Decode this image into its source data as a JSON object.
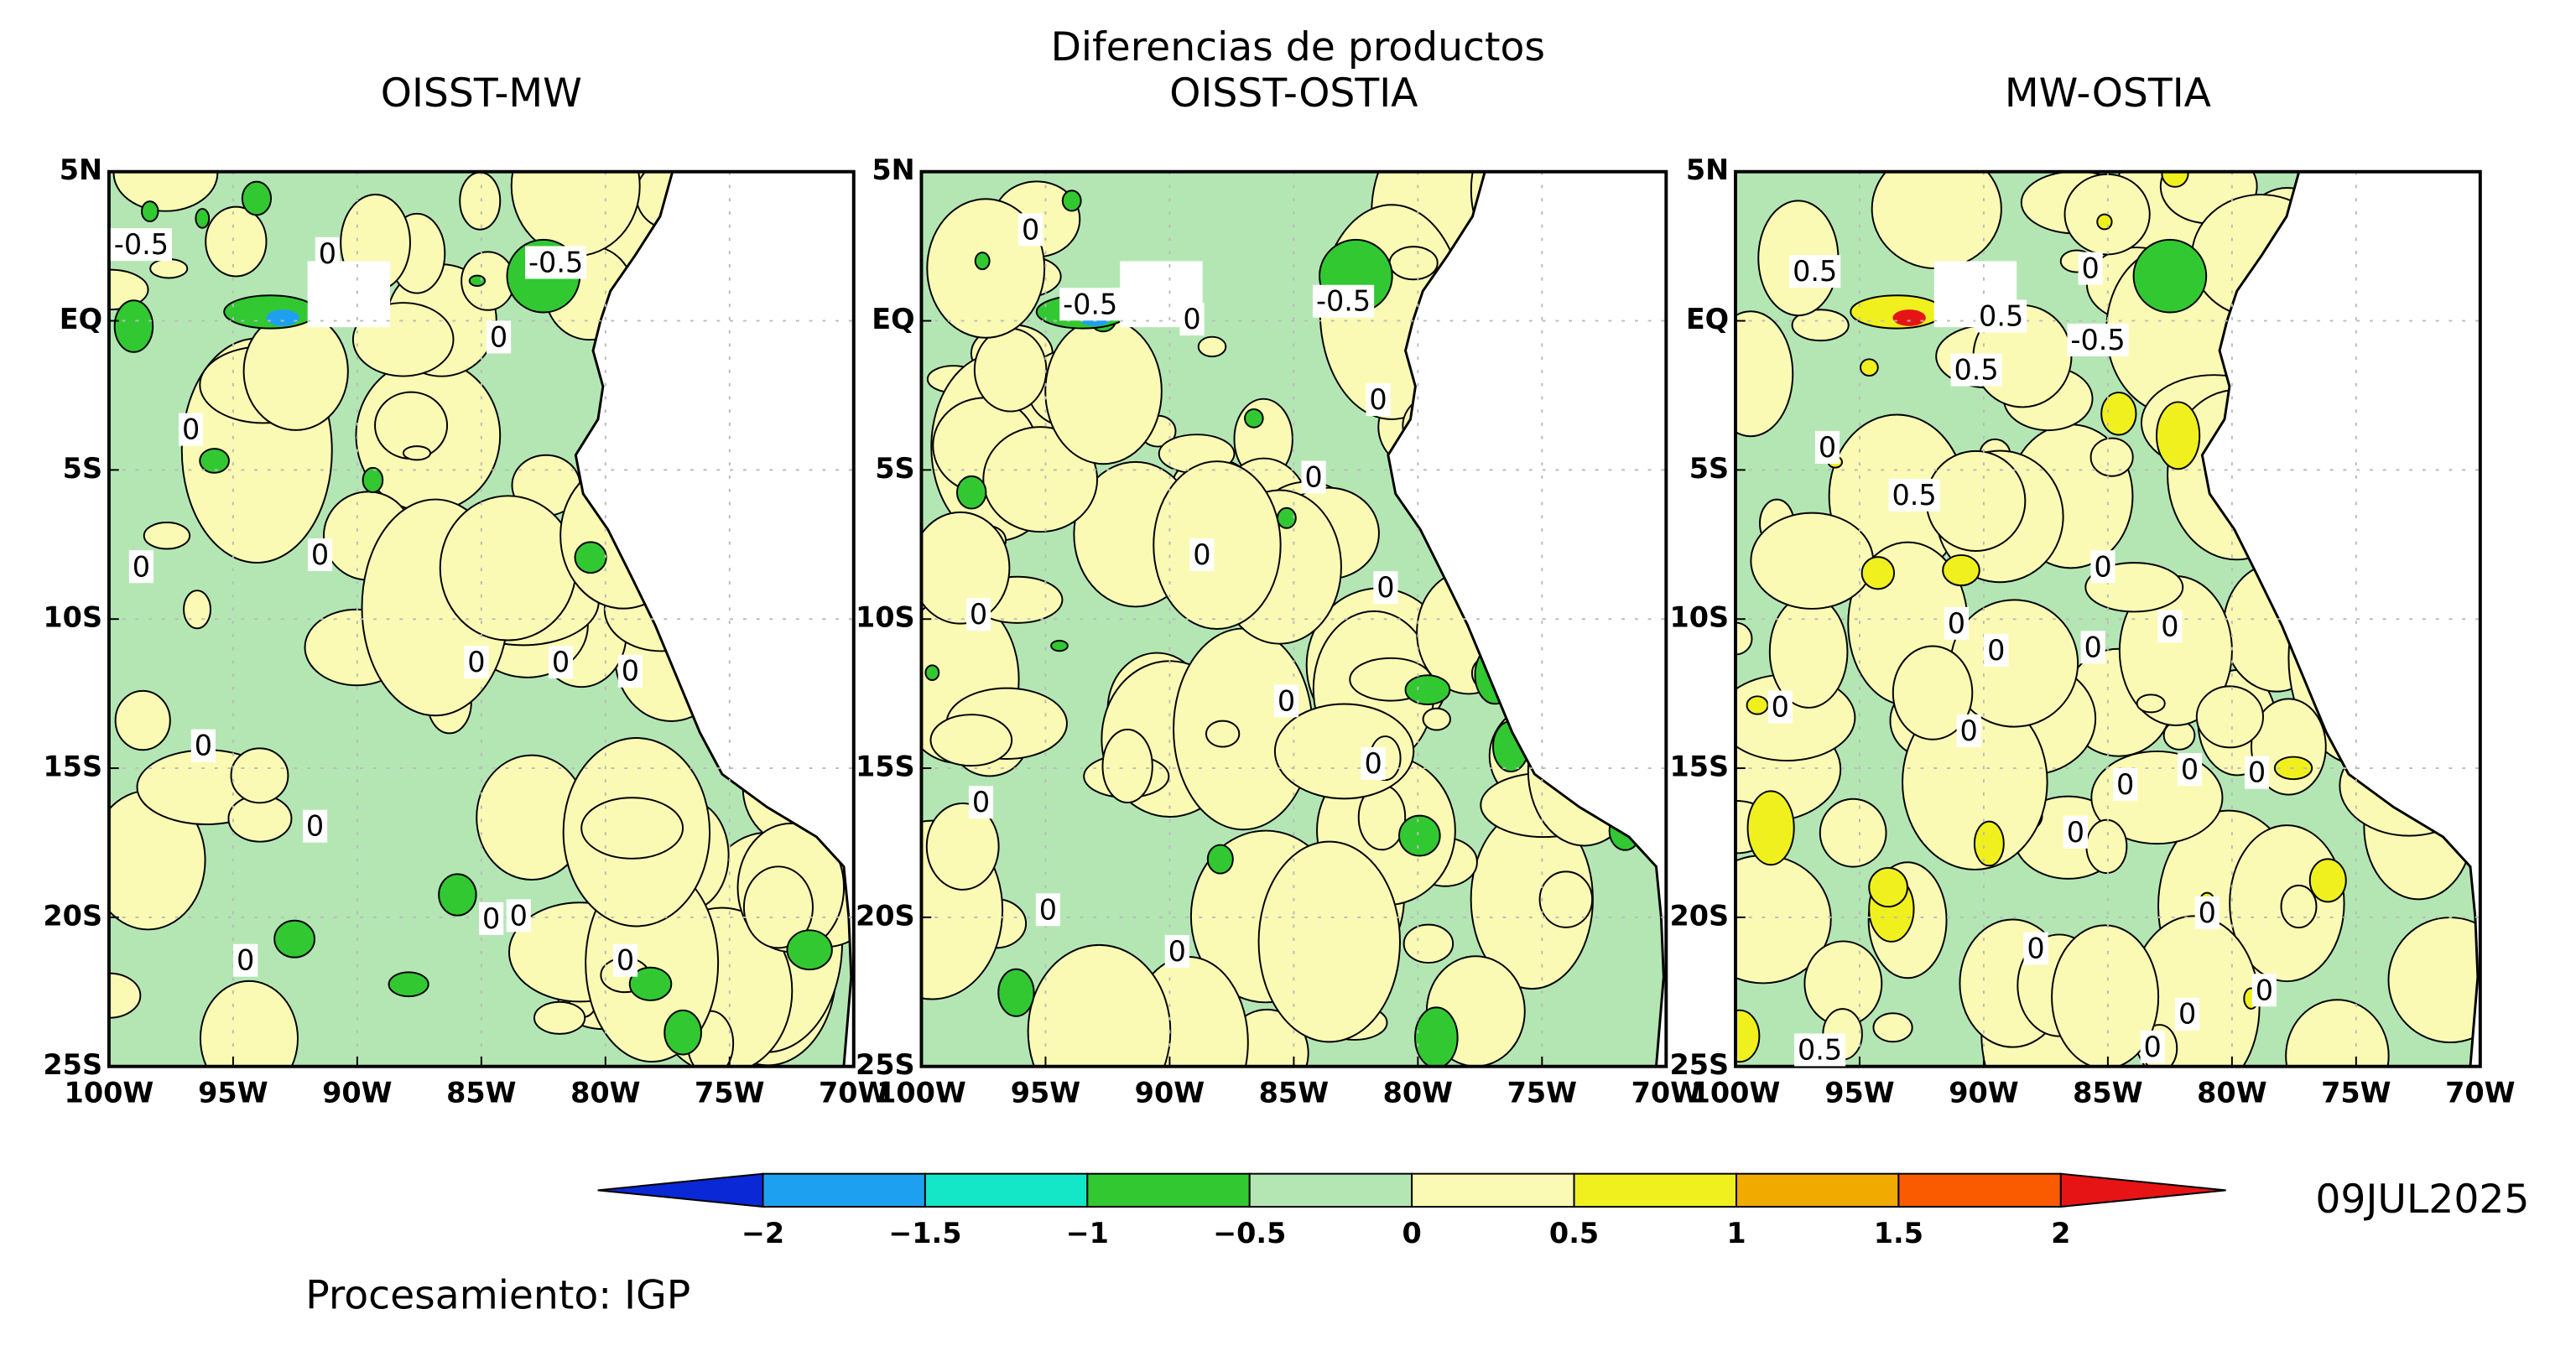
{
  "title": "Diferencias de productos",
  "xlim": [
    -100,
    -70
  ],
  "ylim": [
    -25,
    5
  ],
  "xticks": [
    {
      "value": -100,
      "label": "100W"
    },
    {
      "value": -95,
      "label": "95W"
    },
    {
      "value": -90,
      "label": "90W"
    },
    {
      "value": -85,
      "label": "85W"
    },
    {
      "value": -80,
      "label": "80W"
    },
    {
      "value": -75,
      "label": "75W"
    },
    {
      "value": -70,
      "label": "70W"
    }
  ],
  "yticks": [
    {
      "value": 5,
      "label": "5N"
    },
    {
      "value": 0,
      "label": "EQ"
    },
    {
      "value": -5,
      "label": "5S"
    },
    {
      "value": -10,
      "label": "10S"
    },
    {
      "value": -15,
      "label": "15S"
    },
    {
      "value": -20,
      "label": "20S"
    },
    {
      "value": -25,
      "label": "25S"
    }
  ],
  "panels": [
    {
      "title": "OISST-MW",
      "contour_labels": [
        {
          "text": "-0.5",
          "lon": -98.7,
          "lat": 2.5
        },
        {
          "text": "0",
          "lon": -91.2,
          "lat": 2.2
        },
        {
          "text": "-0.5",
          "lon": -82,
          "lat": 1.9
        },
        {
          "text": "0",
          "lon": -84.3,
          "lat": -0.6
        },
        {
          "text": "0",
          "lon": -96.7,
          "lat": -3.7
        },
        {
          "text": "0",
          "lon": -98.7,
          "lat": -8.3
        },
        {
          "text": "0",
          "lon": -91.5,
          "lat": -7.9
        },
        {
          "text": "0",
          "lon": -85.2,
          "lat": -11.5
        },
        {
          "text": "0",
          "lon": -81.8,
          "lat": -11.5
        },
        {
          "text": "0",
          "lon": -79,
          "lat": -11.8
        },
        {
          "text": "0",
          "lon": -96.2,
          "lat": -14.3
        },
        {
          "text": "0",
          "lon": -91.7,
          "lat": -17
        },
        {
          "text": "0",
          "lon": -84.6,
          "lat": -20.1
        },
        {
          "text": "0",
          "lon": -83.5,
          "lat": -20
        },
        {
          "text": "0",
          "lon": -94.5,
          "lat": -21.5
        },
        {
          "text": "0",
          "lon": -79.2,
          "lat": -21.5
        }
      ]
    },
    {
      "title": "OISST-OSTIA",
      "contour_labels": [
        {
          "text": "0",
          "lon": -95.6,
          "lat": 3
        },
        {
          "text": "-0.5",
          "lon": -93.2,
          "lat": 0.5
        },
        {
          "text": "0",
          "lon": -89.1,
          "lat": 0
        },
        {
          "text": "-0.5",
          "lon": -83,
          "lat": 0.6
        },
        {
          "text": "0",
          "lon": -81.6,
          "lat": -2.7
        },
        {
          "text": "0",
          "lon": -84.2,
          "lat": -5.3
        },
        {
          "text": "0",
          "lon": -88.7,
          "lat": -7.9
        },
        {
          "text": "0",
          "lon": -81.3,
          "lat": -9
        },
        {
          "text": "0",
          "lon": -97.7,
          "lat": -9.9
        },
        {
          "text": "0",
          "lon": -85.3,
          "lat": -12.8
        },
        {
          "text": "0",
          "lon": -81.8,
          "lat": -14.9
        },
        {
          "text": "0",
          "lon": -97.6,
          "lat": -16.2
        },
        {
          "text": "0",
          "lon": -94.9,
          "lat": -19.8
        },
        {
          "text": "0",
          "lon": -89.7,
          "lat": -21.2
        }
      ]
    },
    {
      "title": "MW-OSTIA",
      "contour_labels": [
        {
          "text": "0.5",
          "lon": -96.8,
          "lat": 1.6
        },
        {
          "text": "0",
          "lon": -85.7,
          "lat": 1.7
        },
        {
          "text": "0.5",
          "lon": -89.3,
          "lat": 0.1
        },
        {
          "text": "-0.5",
          "lon": -85.4,
          "lat": -0.7
        },
        {
          "text": "0.5",
          "lon": -90.3,
          "lat": -1.7
        },
        {
          "text": "0",
          "lon": -96.3,
          "lat": -4.3
        },
        {
          "text": "0.5",
          "lon": -92.8,
          "lat": -5.9
        },
        {
          "text": "0",
          "lon": -85.2,
          "lat": -8.3
        },
        {
          "text": "0",
          "lon": -91.1,
          "lat": -10.2
        },
        {
          "text": "0",
          "lon": -89.5,
          "lat": -11.1
        },
        {
          "text": "0",
          "lon": -85.6,
          "lat": -11
        },
        {
          "text": "0",
          "lon": -82.5,
          "lat": -10.3
        },
        {
          "text": "0",
          "lon": -98.2,
          "lat": -13
        },
        {
          "text": "0",
          "lon": -90.6,
          "lat": -13.8
        },
        {
          "text": "0",
          "lon": -84.3,
          "lat": -15.6
        },
        {
          "text": "0",
          "lon": -81.7,
          "lat": -15.1
        },
        {
          "text": "0",
          "lon": -79,
          "lat": -15.2
        },
        {
          "text": "0",
          "lon": -86.3,
          "lat": -17.2
        },
        {
          "text": "0",
          "lon": -81,
          "lat": -19.9
        },
        {
          "text": "0",
          "lon": -87.9,
          "lat": -21.1
        },
        {
          "text": "0",
          "lon": -78.7,
          "lat": -22.5
        },
        {
          "text": "0",
          "lon": -81.8,
          "lat": -23.3
        },
        {
          "text": "0",
          "lon": -83.2,
          "lat": -24.4
        },
        {
          "text": "0.5",
          "lon": -96.6,
          "lat": -24.5
        }
      ]
    }
  ],
  "colorbar": {
    "levels": [
      {
        "value": -2,
        "label": "−2"
      },
      {
        "value": -1.5,
        "label": "−1.5"
      },
      {
        "value": -1,
        "label": "−1"
      },
      {
        "value": -0.5,
        "label": "−0.5"
      },
      0,
      0.5,
      1,
      1.5,
      2
    ],
    "colors": [
      "#0a28d6",
      "#1ea0f0",
      "#14e6c8",
      "#32c832",
      "#b4e6b4",
      "#fafab4",
      "#f0f01e",
      "#f0aa00",
      "#fa5a00",
      "#e61414"
    ]
  },
  "date": "09JUL2025",
  "credit": "Procesamiento: IGP"
}
